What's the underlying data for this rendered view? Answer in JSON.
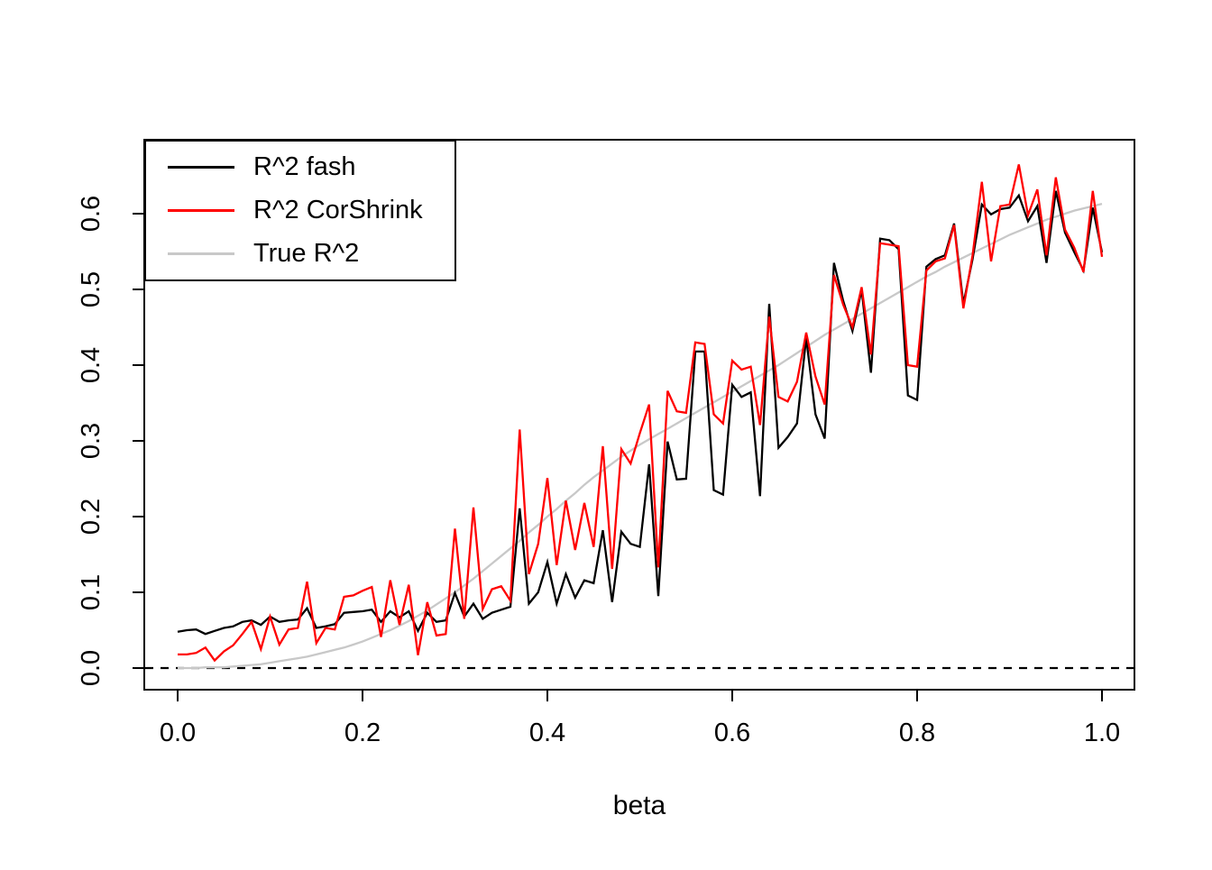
{
  "chart_data": {
    "type": "line",
    "title": "",
    "xlabel": "beta",
    "ylabel": "",
    "grid": false,
    "legend_position": "top-left",
    "x_ticks": [
      "0.0",
      "0.2",
      "0.4",
      "0.6",
      "0.8",
      "1.0"
    ],
    "x_tick_values": [
      0,
      0.2,
      0.4,
      0.6,
      0.8,
      1.0
    ],
    "y_ticks": [
      "0.0",
      "0.1",
      "0.2",
      "0.3",
      "0.4",
      "0.5",
      "0.6"
    ],
    "y_tick_values": [
      0,
      0.1,
      0.2,
      0.3,
      0.4,
      0.5,
      0.6
    ],
    "xlim": [
      -0.036,
      1.035
    ],
    "ylim": [
      -0.029,
      0.698
    ],
    "hline_dashed_at": 0,
    "x_step": 0.01,
    "x": [
      0,
      0.01,
      0.02,
      0.03,
      0.04,
      0.05,
      0.06,
      0.07,
      0.08,
      0.09,
      0.1,
      0.11,
      0.12,
      0.13,
      0.14,
      0.15,
      0.16,
      0.17,
      0.18,
      0.19,
      0.2,
      0.21,
      0.22,
      0.23,
      0.24,
      0.25,
      0.26,
      0.27,
      0.28,
      0.29,
      0.3,
      0.31,
      0.32,
      0.33,
      0.34,
      0.35,
      0.36,
      0.37,
      0.38,
      0.39,
      0.4,
      0.41,
      0.42,
      0.43,
      0.44,
      0.45,
      0.46,
      0.47,
      0.48,
      0.49,
      0.5,
      0.51,
      0.52,
      0.53,
      0.54,
      0.55,
      0.56,
      0.57,
      0.58,
      0.59,
      0.6,
      0.61,
      0.62,
      0.63,
      0.64,
      0.65,
      0.66,
      0.67,
      0.68,
      0.69,
      0.7,
      0.71,
      0.72,
      0.73,
      0.74,
      0.75,
      0.76,
      0.77,
      0.78,
      0.79,
      0.8,
      0.81,
      0.82,
      0.83,
      0.84,
      0.85,
      0.86,
      0.87,
      0.88,
      0.89,
      0.9,
      0.91,
      0.92,
      0.93,
      0.94,
      0.95,
      0.96,
      0.97,
      0.98,
      0.99,
      1.0
    ],
    "series": [
      {
        "name": "R^2 fash",
        "color": "#000000",
        "values": [
          0.048,
          0.05,
          0.051,
          0.045,
          0.049,
          0.053,
          0.055,
          0.061,
          0.063,
          0.057,
          0.068,
          0.061,
          0.063,
          0.064,
          0.079,
          0.053,
          0.055,
          0.058,
          0.073,
          0.074,
          0.075,
          0.077,
          0.061,
          0.075,
          0.067,
          0.075,
          0.049,
          0.073,
          0.061,
          0.063,
          0.099,
          0.068,
          0.085,
          0.065,
          0.073,
          0.077,
          0.081,
          0.211,
          0.085,
          0.1,
          0.14,
          0.085,
          0.124,
          0.093,
          0.116,
          0.112,
          0.182,
          0.087,
          0.18,
          0.164,
          0.16,
          0.269,
          0.095,
          0.299,
          0.249,
          0.25,
          0.418,
          0.418,
          0.235,
          0.229,
          0.374,
          0.358,
          0.364,
          0.227,
          0.481,
          0.291,
          0.305,
          0.323,
          0.436,
          0.335,
          0.303,
          0.535,
          0.485,
          0.445,
          0.499,
          0.39,
          0.567,
          0.565,
          0.553,
          0.36,
          0.354,
          0.53,
          0.54,
          0.545,
          0.587,
          0.481,
          0.54,
          0.612,
          0.599,
          0.606,
          0.608,
          0.624,
          0.59,
          0.61,
          0.535,
          0.63,
          0.575,
          0.549,
          0.525,
          0.608,
          0.549
        ]
      },
      {
        "name": "R^2 CorShrink",
        "color": "#FF0000",
        "values": [
          0.018,
          0.018,
          0.02,
          0.027,
          0.01,
          0.022,
          0.03,
          0.045,
          0.061,
          0.025,
          0.068,
          0.031,
          0.051,
          0.053,
          0.114,
          0.033,
          0.053,
          0.051,
          0.094,
          0.096,
          0.102,
          0.107,
          0.041,
          0.116,
          0.057,
          0.11,
          0.017,
          0.087,
          0.043,
          0.045,
          0.184,
          0.065,
          0.212,
          0.078,
          0.104,
          0.108,
          0.089,
          0.315,
          0.124,
          0.164,
          0.251,
          0.136,
          0.221,
          0.156,
          0.218,
          0.16,
          0.293,
          0.131,
          0.289,
          0.27,
          0.31,
          0.348,
          0.133,
          0.366,
          0.339,
          0.337,
          0.43,
          0.428,
          0.335,
          0.323,
          0.406,
          0.394,
          0.398,
          0.321,
          0.464,
          0.358,
          0.352,
          0.378,
          0.443,
          0.385,
          0.348,
          0.519,
          0.48,
          0.45,
          0.503,
          0.414,
          0.561,
          0.559,
          0.557,
          0.4,
          0.398,
          0.525,
          0.537,
          0.541,
          0.585,
          0.475,
          0.545,
          0.642,
          0.537,
          0.61,
          0.612,
          0.665,
          0.598,
          0.632,
          0.545,
          0.648,
          0.579,
          0.555,
          0.523,
          0.63,
          0.543
        ]
      },
      {
        "name": "True R^2",
        "color": "#C8C8C8",
        "values": [
          0.0,
          0.0,
          0.0,
          0.001,
          0.001,
          0.001,
          0.002,
          0.003,
          0.004,
          0.005,
          0.007,
          0.009,
          0.011,
          0.013,
          0.015,
          0.018,
          0.021,
          0.024,
          0.027,
          0.031,
          0.035,
          0.04,
          0.045,
          0.05,
          0.056,
          0.062,
          0.069,
          0.076,
          0.084,
          0.092,
          0.1,
          0.109,
          0.118,
          0.128,
          0.138,
          0.148,
          0.158,
          0.168,
          0.179,
          0.189,
          0.2,
          0.21,
          0.221,
          0.231,
          0.242,
          0.252,
          0.261,
          0.27,
          0.279,
          0.287,
          0.295,
          0.302,
          0.309,
          0.316,
          0.323,
          0.33,
          0.337,
          0.344,
          0.351,
          0.358,
          0.365,
          0.372,
          0.379,
          0.386,
          0.393,
          0.4,
          0.408,
          0.416,
          0.424,
          0.432,
          0.44,
          0.447,
          0.454,
          0.461,
          0.468,
          0.475,
          0.482,
          0.489,
          0.496,
          0.503,
          0.51,
          0.517,
          0.523,
          0.53,
          0.536,
          0.542,
          0.548,
          0.554,
          0.56,
          0.566,
          0.572,
          0.577,
          0.582,
          0.587,
          0.592,
          0.596,
          0.6,
          0.604,
          0.607,
          0.61,
          0.613
        ]
      }
    ]
  }
}
